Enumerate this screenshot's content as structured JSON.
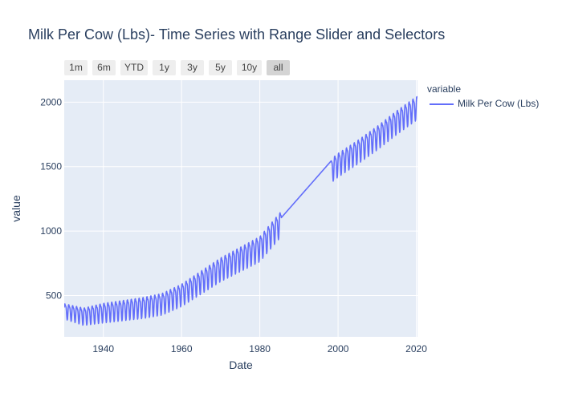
{
  "chart_data": {
    "type": "line",
    "title": "Milk Per Cow (Lbs)- Time Series with Range Slider and Selectors",
    "xlabel": "Date",
    "ylabel": "value",
    "xlim": [
      1930,
      2020.3
    ],
    "ylim": [
      180,
      2170
    ],
    "xticks": [
      1940,
      1960,
      1980,
      2000,
      2020
    ],
    "yticks": [
      500,
      1000,
      1500,
      2000
    ],
    "grid": true,
    "legend_title": "variable",
    "legend_position": "right",
    "line_color": "#636efa",
    "plot_bg": "#e5ecf6",
    "seasonal_amplitude_note": "monthly oscillation, ~yearly",
    "series": [
      {
        "name": "Milk Per Cow (Lbs)",
        "trend_x": [
          1930,
          1935,
          1940,
          1945,
          1950,
          1955,
          1960,
          1965,
          1970,
          1975,
          1980,
          1985,
          1998,
          2000,
          2005,
          2010,
          2015,
          2020
        ],
        "trend_y": [
          390,
          350,
          380,
          400,
          420,
          450,
          520,
          620,
          720,
          800,
          880,
          1060,
          1480,
          1530,
          1630,
          1740,
          1860,
          1970
        ],
        "amplitude_x": [
          1930,
          1940,
          1960,
          1980,
          1985,
          1998,
          2020
        ],
        "amplitude_y": [
          55,
          70,
          80,
          90,
          90,
          85,
          85
        ],
        "gap": [
          1985.5,
          1998.2
        ]
      }
    ]
  },
  "range_selector": {
    "buttons": [
      "1m",
      "6m",
      "YTD",
      "1y",
      "3y",
      "5y",
      "10y",
      "all"
    ],
    "active": "all"
  }
}
